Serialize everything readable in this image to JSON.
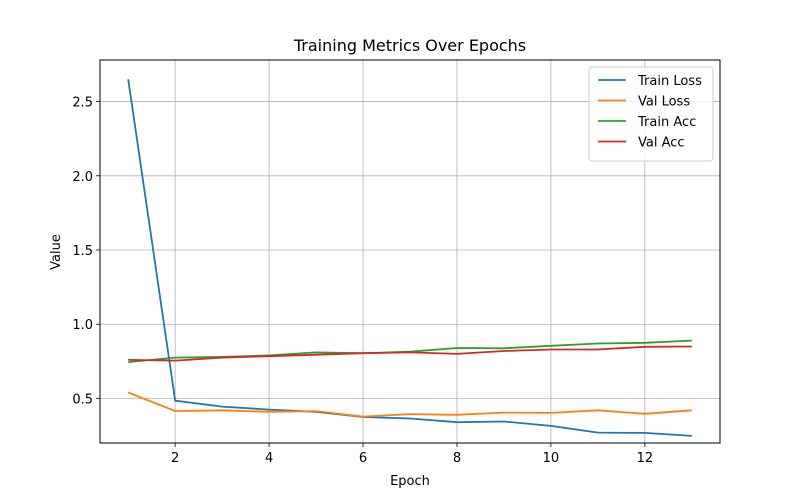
{
  "chart_data": {
    "type": "line",
    "title": "Training Metrics Over Epochs",
    "xlabel": "Epoch",
    "ylabel": "Value",
    "xlim": [
      0.4,
      13.6
    ],
    "ylim": [
      0.2,
      2.78
    ],
    "xticks": [
      2,
      4,
      6,
      8,
      10,
      12
    ],
    "yticks": [
      0.5,
      1.0,
      1.5,
      2.0,
      2.5
    ],
    "xtick_labels": [
      "2",
      "4",
      "6",
      "8",
      "10",
      "12"
    ],
    "ytick_labels": [
      "0.5",
      "1.0",
      "1.5",
      "2.0",
      "2.5"
    ],
    "grid": true,
    "legend_position": "top-right",
    "x": [
      1,
      2,
      3,
      4,
      5,
      6,
      7,
      8,
      9,
      10,
      11,
      12,
      13
    ],
    "series": [
      {
        "name": "Train Loss",
        "color": "#1f77b4",
        "values": [
          2.65,
          0.485,
          0.445,
          0.425,
          0.41,
          0.375,
          0.365,
          0.34,
          0.345,
          0.315,
          0.27,
          0.268,
          0.248
        ]
      },
      {
        "name": "Val Loss",
        "color": "#ff7f0e",
        "values": [
          0.54,
          0.415,
          0.42,
          0.41,
          0.415,
          0.378,
          0.395,
          0.39,
          0.405,
          0.403,
          0.42,
          0.397,
          0.42
        ]
      },
      {
        "name": "Train Acc",
        "color": "#2ca02c",
        "values": [
          0.745,
          0.775,
          0.78,
          0.79,
          0.81,
          0.805,
          0.815,
          0.84,
          0.838,
          0.855,
          0.87,
          0.875,
          0.89
        ]
      },
      {
        "name": "Val Acc",
        "color": "#d62728",
        "values": [
          0.76,
          0.755,
          0.775,
          0.785,
          0.795,
          0.805,
          0.81,
          0.8,
          0.82,
          0.83,
          0.83,
          0.848,
          0.85
        ]
      }
    ]
  }
}
